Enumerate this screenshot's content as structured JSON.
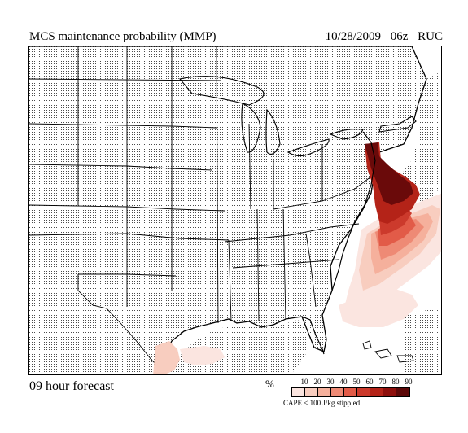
{
  "header": {
    "title": "MCS maintenance probability (MMP)",
    "date": "10/28/2009",
    "cycle": "06z",
    "model": "RUC"
  },
  "footer": {
    "forecast_label": "09 hour forecast"
  },
  "legend": {
    "unit": "%",
    "ticks": [
      "10",
      "20",
      "30",
      "40",
      "50",
      "60",
      "70",
      "80",
      "90"
    ],
    "colors": [
      "#fbe5e0",
      "#f8cdbf",
      "#f5b09c",
      "#ee8a75",
      "#e25b48",
      "#cc3a2c",
      "#b42318",
      "#8e0f0c",
      "#5c0808"
    ],
    "note": "CAPE < 100 J/kg stippled"
  },
  "map": {
    "stipple": true,
    "region": "Continental United States",
    "probability_colors": {
      "low": "#fbe5e0",
      "light": "#f5b09c",
      "medium": "#e25b48",
      "high": "#b42318",
      "max": "#6a0a0a"
    }
  }
}
